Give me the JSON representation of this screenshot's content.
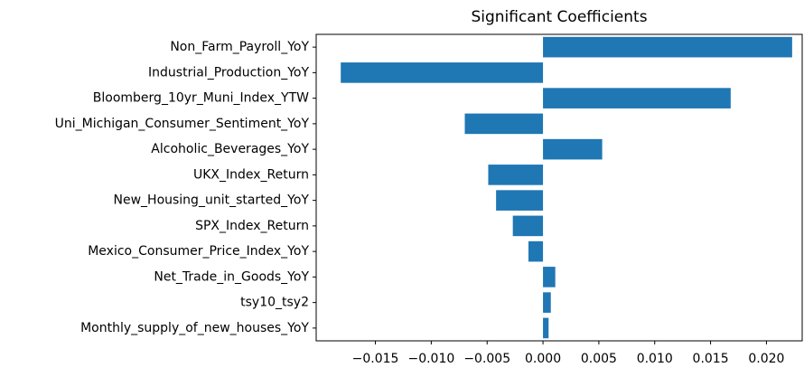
{
  "chart_data": {
    "type": "barh",
    "title": "Significant Coefficients",
    "categories": [
      "Non_Farm_Payroll_YoY",
      "Industrial_Production_YoY",
      "Bloomberg_10yr_Muni_Index_YTW",
      "Uni_Michigan_Consumer_Sentiment_YoY",
      "Alcoholic_Beverages_YoY",
      "UKX_Index_Return",
      "New_Housing_unit_started_YoY",
      "SPX_Index_Return",
      "Mexico_Consumer_Price_Index_YoY",
      "Net_Trade_in_Goods_YoY",
      "tsy10_tsy2",
      "Monthly_supply_of_new_houses_YoY"
    ],
    "values": [
      0.0223,
      -0.0181,
      0.0168,
      -0.007,
      0.0053,
      -0.0049,
      -0.0042,
      -0.0027,
      -0.0013,
      0.0011,
      0.0007,
      0.0005
    ],
    "color": "#1f77b4",
    "xlim": [
      -0.0203,
      0.0232
    ],
    "xticks": [
      {
        "value": -0.015,
        "label": "−0.015"
      },
      {
        "value": -0.01,
        "label": "−0.010"
      },
      {
        "value": -0.005,
        "label": "−0.005"
      },
      {
        "value": 0,
        "label": "0.000"
      },
      {
        "value": 0.005,
        "label": "0.005"
      },
      {
        "value": 0.01,
        "label": "0.010"
      },
      {
        "value": 0.015,
        "label": "0.015"
      },
      {
        "value": 0.02,
        "label": "0.020"
      }
    ],
    "grid": false
  }
}
